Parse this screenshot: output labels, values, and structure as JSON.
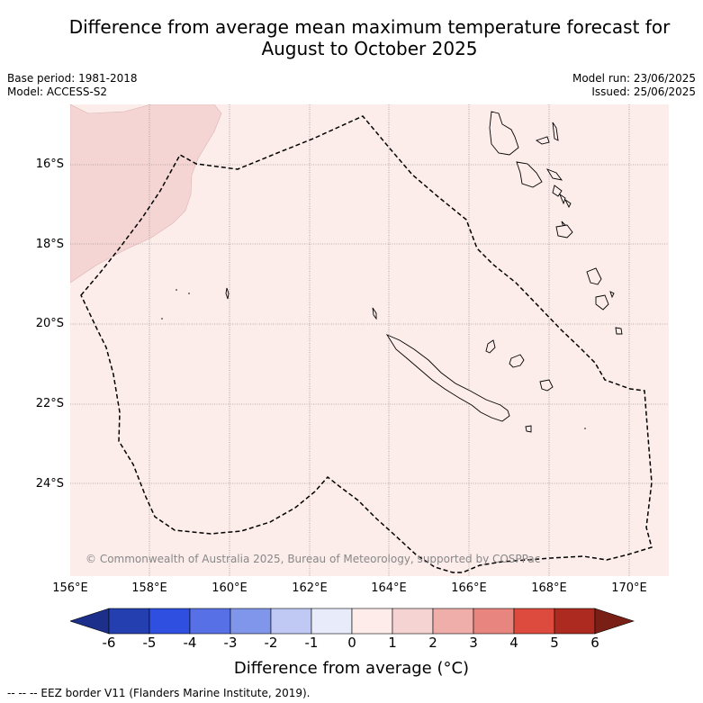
{
  "title_line1": "Difference from average mean maximum temperature forecast for",
  "title_line2": "August to October 2025",
  "base_period": "Base period: 1981-2018",
  "model": "Model: ACCESS-S2",
  "model_run": "Model run: 23/06/2025",
  "issued": "Issued: 25/06/2025",
  "lat_labels": [
    "16°S",
    "18°S",
    "20°S",
    "22°S",
    "24°S"
  ],
  "lon_labels": [
    "156°E",
    "158°E",
    "160°E",
    "162°E",
    "164°E",
    "166°E",
    "168°E",
    "170°E"
  ],
  "copyright": "© Commonwealth of Australia 2025, Bureau of Meteorology, supported by COSPPac",
  "colorbar": {
    "ticks": [
      "-6",
      "-5",
      "-4",
      "-3",
      "-2",
      "-1",
      "0",
      "1",
      "2",
      "3",
      "4",
      "5",
      "6"
    ],
    "colors": [
      "#1c2f8a",
      "#2440b0",
      "#2f4fe0",
      "#5870e6",
      "#8096ea",
      "#c0c8f4",
      "#e8ecfa",
      "#fdecea",
      "#f5d3d3",
      "#f0aeaa",
      "#e8857e",
      "#dd4a3e",
      "#ad2a21",
      "#7a1f16"
    ],
    "label": "Difference from average (°C)"
  },
  "map": {
    "background_color": "#fcecea",
    "anomaly_region_color": "#f5d5d4",
    "region_anomaly_range": [
      "0",
      "2"
    ]
  },
  "footer": "--  --  -- EEZ border V11 (Flanders Marine Institute, 2019)."
}
